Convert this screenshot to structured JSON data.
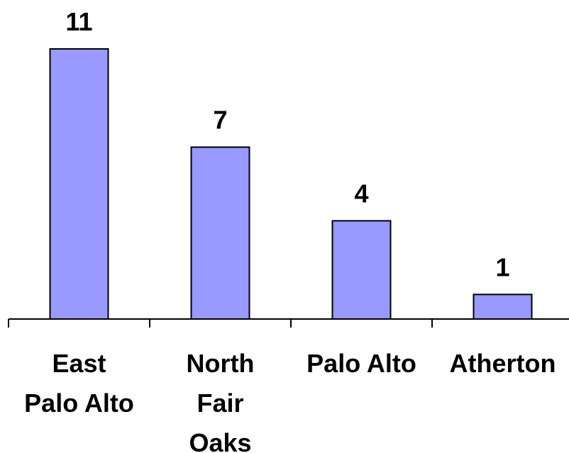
{
  "chart_data": {
    "type": "bar",
    "categories": [
      [
        "East",
        "Palo Alto"
      ],
      [
        "North",
        "Fair",
        "Oaks"
      ],
      [
        "Palo Alto"
      ],
      [
        "Atherton"
      ]
    ],
    "values": [
      11,
      7,
      4,
      1
    ],
    "ylim": [
      0,
      11
    ],
    "grid": false,
    "bar_color": "#9999FF",
    "title": "",
    "xlabel": "",
    "ylabel": ""
  }
}
